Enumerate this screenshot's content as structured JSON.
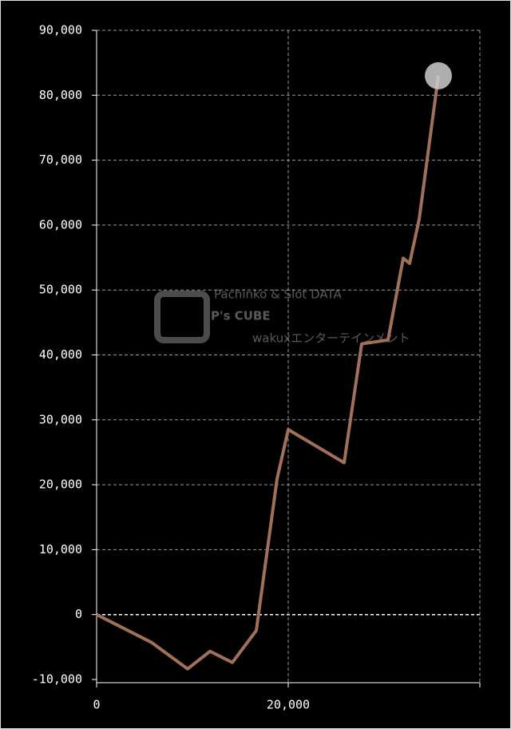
{
  "chart_data": {
    "type": "line",
    "watermark": {
      "top": "Pachinko & Slot DATA",
      "brand": "P's CUBE",
      "sub": "wakuxエンターテインメント"
    },
    "x": [
      0,
      5750,
      9500,
      11833,
      14167,
      16667,
      18833,
      20000,
      25833,
      27667,
      30417,
      32000,
      32667,
      33667,
      35667
    ],
    "series": [
      {
        "color": "#a0705a",
        "values": [
          0,
          -4300,
          -8360,
          -5660,
          -7380,
          -2460,
          20900,
          28500,
          23400,
          41700,
          42300,
          54900,
          54100,
          60900,
          83000
        ]
      }
    ],
    "xlim": [
      0,
      40000
    ],
    "xticks": [
      0,
      {
        "value": 20000,
        "label": "20,000"
      }
    ],
    "ylim": [
      -10000,
      90000
    ],
    "yticks": [
      {
        "value": -10000,
        "label": "-10,000"
      },
      0,
      {
        "value": 10000,
        "label": "10,000"
      },
      {
        "value": 20000,
        "label": "20,000"
      },
      {
        "value": 30000,
        "label": "30,000"
      },
      {
        "value": 40000,
        "label": "40,000"
      },
      {
        "value": 50000,
        "label": "50,000"
      },
      {
        "value": 60000,
        "label": "60,000"
      },
      {
        "value": 70000,
        "label": "70,000"
      },
      {
        "value": 80000,
        "label": "80,000"
      },
      {
        "value": 90000,
        "label": "90,000"
      }
    ],
    "grid": true
  }
}
